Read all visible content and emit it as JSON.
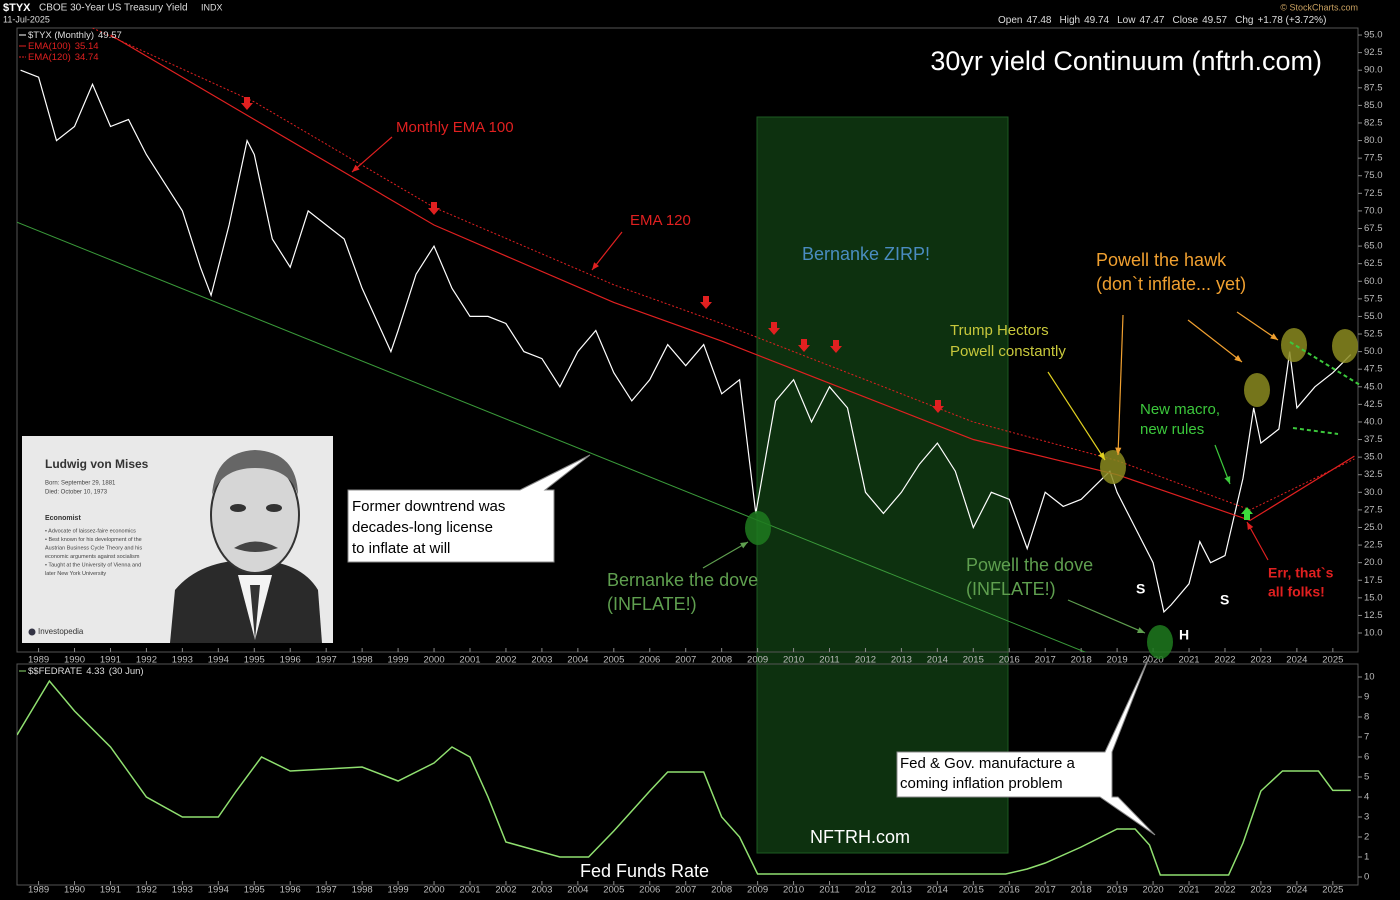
{
  "chart_data": [
    {
      "type": "line",
      "header": {
        "symbol": "$TYX",
        "name": "CBOE 30-Year US Treasury Yield",
        "exchange": "INDX",
        "date": "11-Jul-2025",
        "source": "© StockCharts.com",
        "quote": [
          {
            "label": "Open",
            "value": "47.48"
          },
          {
            "label": "High",
            "value": "49.74"
          },
          {
            "label": "Low",
            "value": "47.47"
          },
          {
            "label": "Close",
            "value": "49.57"
          },
          {
            "label": "Chg",
            "value": "+1.78 (+3.72%)"
          }
        ]
      },
      "title": "30yr yield Continuum (nftrh.com)",
      "xlim": [
        1988.4,
        2025.7
      ],
      "xticks": [
        1989,
        1990,
        1991,
        1992,
        1993,
        1994,
        1995,
        1996,
        1997,
        1998,
        1999,
        2000,
        2001,
        2002,
        2003,
        2004,
        2005,
        2006,
        2007,
        2008,
        2009,
        2010,
        2011,
        2012,
        2013,
        2014,
        2015,
        2016,
        2017,
        2018,
        2019,
        2020,
        2021,
        2022,
        2023,
        2024,
        2025
      ],
      "ylim": [
        7.3,
        96
      ],
      "yticks": [
        {
          "value": 95,
          "label": "95.0"
        },
        {
          "value": 92.5,
          "label": "92.5"
        },
        {
          "value": 90,
          "label": "90.0"
        },
        {
          "value": 87.5,
          "label": "87.5"
        },
        {
          "value": 85,
          "label": "85.0"
        },
        {
          "value": 82.5,
          "label": "82.5"
        },
        {
          "value": 80,
          "label": "80.0"
        },
        {
          "value": 77.5,
          "label": "77.5"
        },
        {
          "value": 75,
          "label": "75.0"
        },
        {
          "value": 72.5,
          "label": "72.5"
        },
        {
          "value": 70,
          "label": "70.0"
        },
        {
          "value": 67.5,
          "label": "67.5"
        },
        {
          "value": 65,
          "label": "65.0"
        },
        {
          "value": 62.5,
          "label": "62.5"
        },
        {
          "value": 60,
          "label": "60.0"
        },
        {
          "value": 57.5,
          "label": "57.5"
        },
        {
          "value": 55,
          "label": "55.0"
        },
        {
          "value": 52.5,
          "label": "52.5"
        },
        {
          "value": 50,
          "label": "50.0"
        },
        {
          "value": 47.5,
          "label": "47.5"
        },
        {
          "value": 45,
          "label": "45.0"
        },
        {
          "value": 42.5,
          "label": "42.5"
        },
        {
          "value": 40,
          "label": "40.0"
        },
        {
          "value": 37.5,
          "label": "37.5"
        },
        {
          "value": 35,
          "label": "35.0"
        },
        {
          "value": 32.5,
          "label": "32.5"
        },
        {
          "value": 30,
          "label": "30.0"
        },
        {
          "value": 27.5,
          "label": "27.5"
        },
        {
          "value": 25,
          "label": "25.0"
        },
        {
          "value": 22.5,
          "label": "22.5"
        },
        {
          "value": 20,
          "label": "20.0"
        },
        {
          "value": 17.5,
          "label": "17.5"
        },
        {
          "value": 15,
          "label": "15.0"
        },
        {
          "value": 12.5,
          "label": "12.5"
        },
        {
          "value": 10,
          "label": "10.0"
        }
      ],
      "series": [
        {
          "name": "$TYX (Monthly)",
          "color": "#ffffff",
          "x": [
            1988.5,
            1989,
            1989.5,
            1990,
            1990.5,
            1991,
            1991.5,
            1992,
            1992.5,
            1993,
            1993.5,
            1993.8,
            1994.3,
            1994.8,
            1995,
            1995.5,
            1996,
            1996.5,
            1997,
            1997.5,
            1998,
            1998.8,
            1999,
            1999.5,
            2000,
            2000.5,
            2001,
            2001.5,
            2002,
            2002.5,
            2003,
            2003.5,
            2004,
            2004.5,
            2005,
            2005.5,
            2006,
            2006.5,
            2007,
            2007.5,
            2008,
            2008.5,
            2008.95,
            2009.5,
            2010,
            2010.5,
            2011,
            2011.5,
            2012,
            2012.5,
            2013,
            2013.5,
            2014,
            2014.5,
            2015,
            2015.5,
            2016,
            2016.5,
            2017,
            2017.5,
            2018,
            2018.8,
            2019,
            2019.5,
            2020,
            2020.3,
            2020.5,
            2021,
            2021.3,
            2021.6,
            2022,
            2022.5,
            2022.8,
            2023,
            2023.5,
            2023.8,
            2024,
            2024.5,
            2025,
            2025.5
          ],
          "values": [
            90,
            89,
            80,
            82,
            88,
            82,
            83,
            78,
            74,
            70,
            62,
            58,
            68,
            80,
            78,
            66,
            62,
            70,
            68,
            66,
            59,
            50,
            53,
            61,
            65,
            59,
            55,
            55,
            54,
            50,
            49,
            45,
            50,
            53,
            47,
            43,
            46,
            51,
            48,
            51,
            44,
            46,
            27,
            43,
            46,
            40,
            45,
            42,
            30,
            27,
            30,
            34,
            37,
            33,
            25,
            30,
            29,
            22,
            30,
            28,
            29,
            33,
            30,
            25,
            20,
            13,
            14,
            17,
            23,
            20,
            21,
            32,
            42,
            37,
            39,
            50,
            42,
            45,
            47,
            49.57
          ]
        },
        {
          "name": "EMA(100)",
          "color": "#e02020",
          "x": [
            1991,
            1995,
            2000,
            2005,
            2008,
            2010,
            2015,
            2019,
            2022.7,
            2025.6
          ],
          "values": [
            95,
            83,
            68,
            57,
            51.5,
            47.5,
            37.5,
            32.5,
            26,
            35.14
          ]
        },
        {
          "name": "EMA(120)",
          "color": "#e02020",
          "dash": true,
          "x": [
            1990.5,
            1995,
            2000,
            2005,
            2008,
            2010,
            2015,
            2019,
            2022.7,
            2025.6
          ],
          "values": [
            96,
            85.5,
            70.5,
            59.5,
            54,
            50,
            40,
            34.5,
            27.5,
            34.74
          ]
        }
      ],
      "trendline": {
        "color": "#3a9a3a",
        "x": [
          1988.4,
          2020.05
        ],
        "values": [
          68.4,
          3.3
        ]
      },
      "annotations": [
        {
          "lines": [
            "Monthly EMA 100"
          ],
          "color": "#e02020"
        },
        {
          "lines": [
            "EMA 120"
          ],
          "color": "#e02020"
        },
        {
          "lines": [
            "Bernanke ZIRP!"
          ],
          "color": "#4a8cc0"
        },
        {
          "lines": [
            "Trump Hectors",
            "Powell constantly"
          ],
          "color": "#c8c83c"
        },
        {
          "lines": [
            "Powell the hawk",
            "(don`t inflate... yet)"
          ],
          "color": "#f0a030"
        },
        {
          "lines": [
            "New macro,",
            "new rules"
          ],
          "color": "#3cc83c"
        },
        {
          "lines": [
            "Former downtrend was",
            "decades-long license",
            "to inflate at will"
          ],
          "color": "#000000"
        },
        {
          "lines": [
            "Bernanke the dove",
            "(INFLATE!)"
          ],
          "color": "#5f9f4f"
        },
        {
          "lines": [
            "Powell the dove",
            "(INFLATE!)"
          ],
          "color": "#5f9f4f"
        },
        {
          "lines": [
            "Err, that`s",
            "all folks!"
          ],
          "color": "#e02020"
        },
        {
          "lines": [
            "S"
          ],
          "color": "#ffffff"
        },
        {
          "lines": [
            "H"
          ],
          "color": "#ffffff"
        },
        {
          "lines": [
            "S"
          ],
          "color": "#ffffff"
        },
        {
          "lines": [
            "Fed & Gov. manufacture a",
            "coming inflation problem"
          ],
          "color": "#000000"
        },
        {
          "lines": [
            "NFTRH.com"
          ],
          "color": "#ffffff"
        },
        {
          "lines": [
            "Fed Funds Rate"
          ],
          "color": "#ffffff"
        }
      ]
    },
    {
      "type": "line",
      "xlim": [
        1988.4,
        2025.7
      ],
      "xticks": [
        1989,
        1990,
        1991,
        1992,
        1993,
        1994,
        1995,
        1996,
        1997,
        1998,
        1999,
        2000,
        2001,
        2002,
        2003,
        2004,
        2005,
        2006,
        2007,
        2008,
        2009,
        2010,
        2011,
        2012,
        2013,
        2014,
        2015,
        2016,
        2017,
        2018,
        2019,
        2020,
        2021,
        2022,
        2023,
        2024,
        2025
      ],
      "ylim": [
        -0.4,
        10.65
      ],
      "yticks": [
        0,
        1,
        2,
        3,
        4,
        5,
        6,
        7,
        8,
        9,
        10
      ],
      "legend_note": "(30 Jun)",
      "series": [
        {
          "name": "$$FEDRATE",
          "color": "#90e070",
          "x": [
            1988.4,
            1989.3,
            1990,
            1991,
            1992,
            1993,
            1994,
            1994.5,
            1995.2,
            1996,
            1998,
            1999,
            2000,
            2000.5,
            2001,
            2001.5,
            2002,
            2003.5,
            2004.3,
            2005,
            2006,
            2006.5,
            2007.5,
            2008,
            2008.5,
            2009,
            2015.9,
            2016.5,
            2017,
            2018,
            2019,
            2019.5,
            2019.9,
            2020.2,
            2022.1,
            2022.5,
            2023,
            2023.6,
            2024.6,
            2025,
            2025.5
          ],
          "values": [
            7.1,
            9.8,
            8.3,
            6.5,
            4,
            3,
            3,
            4.3,
            6,
            5.3,
            5.5,
            4.8,
            5.7,
            6.5,
            6,
            4,
            1.75,
            1,
            1,
            2.3,
            4.3,
            5.25,
            5.25,
            3,
            2,
            0.15,
            0.15,
            0.4,
            0.7,
            1.5,
            2.4,
            2.4,
            1.6,
            0.1,
            0.1,
            1.7,
            4.3,
            5.3,
            5.3,
            4.33,
            4.33
          ]
        }
      ]
    }
  ],
  "image_card": {
    "title": "Ludwig von Mises",
    "born": "Born: September 29, 1881",
    "died": "Died: October 10, 1973",
    "role": "Economist",
    "bullets": [
      "• Advocate of laissez-faire economics",
      "• Best known for his development of the",
      "  Austrian Business Cycle Theory and his",
      "  economic arguments against socialism",
      "• Taught at the University of Vienna and",
      "  later New York University"
    ],
    "brand": "Investopedia"
  }
}
